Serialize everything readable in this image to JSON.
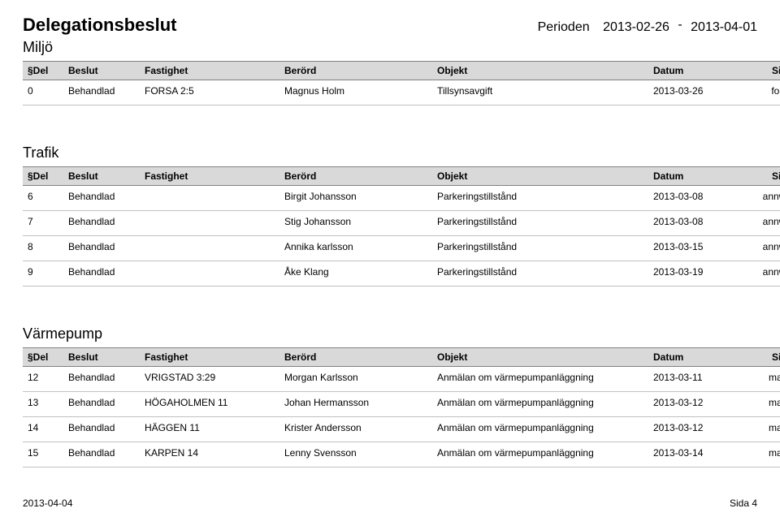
{
  "header": {
    "title": "Delegationsbeslut",
    "period_label": "Perioden",
    "period_from": "2013-02-26",
    "period_sep": "-",
    "period_to": "2013-04-01",
    "subtitle": "Miljö"
  },
  "columns": {
    "del": "§Del",
    "beslut": "Beslut",
    "fastighet": "Fastighet",
    "berord": "Berörd",
    "objekt": "Objekt",
    "datum": "Datum",
    "sign": "Sign"
  },
  "sections": [
    {
      "heading": null,
      "rows": [
        {
          "del": "0",
          "beslut": "Behandlad",
          "fastighet": "FORSA 2:5",
          "berord": "Magnus Holm",
          "objekt": "Tillsynsavgift",
          "datum": "2013-03-26",
          "sign": "fomo"
        }
      ]
    },
    {
      "heading": "Trafik",
      "rows": [
        {
          "del": "6",
          "beslut": "Behandlad",
          "fastighet": "",
          "berord": "Birgit Johansson",
          "objekt": "Parkeringstillstånd",
          "datum": "2013-03-08",
          "sign": "annwik"
        },
        {
          "del": "7",
          "beslut": "Behandlad",
          "fastighet": "",
          "berord": "Stig Johansson",
          "objekt": "Parkeringstillstånd",
          "datum": "2013-03-08",
          "sign": "annwik"
        },
        {
          "del": "8",
          "beslut": "Behandlad",
          "fastighet": "",
          "berord": "Annika karlsson",
          "objekt": "Parkeringstillstånd",
          "datum": "2013-03-15",
          "sign": "annwik"
        },
        {
          "del": "9",
          "beslut": "Behandlad",
          "fastighet": "",
          "berord": "Åke Klang",
          "objekt": "Parkeringstillstånd",
          "datum": "2013-03-19",
          "sign": "annwik"
        }
      ]
    },
    {
      "heading": "Värmepump",
      "rows": [
        {
          "del": "12",
          "beslut": "Behandlad",
          "fastighet": "VRIGSTAD 3:29",
          "berord": "Morgan Karlsson",
          "objekt": "Anmälan om värmepumpanläggning",
          "datum": "2013-03-11",
          "sign": "magu"
        },
        {
          "del": "13",
          "beslut": "Behandlad",
          "fastighet": "HÖGAHOLMEN 11",
          "berord": "Johan Hermansson",
          "objekt": "Anmälan om värmepumpanläggning",
          "datum": "2013-03-12",
          "sign": "magu"
        },
        {
          "del": "14",
          "beslut": "Behandlad",
          "fastighet": "HÄGGEN 11",
          "berord": "Krister Andersson",
          "objekt": "Anmälan om värmepumpanläggning",
          "datum": "2013-03-12",
          "sign": "magu"
        },
        {
          "del": "15",
          "beslut": "Behandlad",
          "fastighet": "KARPEN 14",
          "berord": "Lenny Svensson",
          "objekt": "Anmälan om värmepumpanläggning",
          "datum": "2013-03-14",
          "sign": "magu"
        }
      ]
    }
  ],
  "footer": {
    "date": "2013-04-04",
    "page": "Sida 4"
  },
  "style": {
    "background": "#ffffff",
    "header_row_bg": "#d9d9d9",
    "header_border": "#808080",
    "row_border": "#c0c0c0",
    "text_color": "#000000",
    "title_fontsize": 22,
    "subtitle_fontsize": 18,
    "period_fontsize": 16,
    "cell_fontsize": 12
  }
}
